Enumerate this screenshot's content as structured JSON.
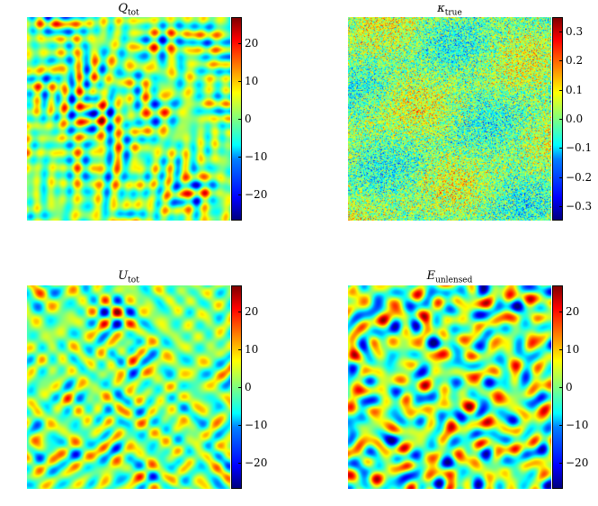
{
  "chart_data": [
    {
      "type": "heatmap",
      "title": "Q",
      "title_sub": "tot",
      "colormap": "jet",
      "clim": [
        -27,
        27
      ],
      "colorbar_ticks": [
        "20",
        "10",
        "0",
        "−10",
        "−20"
      ],
      "colorbar_tick_values": [
        20,
        10,
        0,
        -10,
        -20
      ],
      "texture": "grid-fine"
    },
    {
      "type": "heatmap",
      "title": "κ",
      "title_sub": "true",
      "colormap": "jet",
      "clim": [
        -0.35,
        0.35
      ],
      "colorbar_ticks": [
        "0.3",
        "0.2",
        "0.1",
        "0.0",
        "−0.1",
        "−0.2",
        "−0.3"
      ],
      "colorbar_tick_values": [
        0.3,
        0.2,
        0.1,
        0.0,
        -0.1,
        -0.2,
        -0.3
      ],
      "texture": "noise"
    },
    {
      "type": "heatmap",
      "title": "U",
      "title_sub": "tot",
      "colormap": "jet",
      "clim": [
        -27,
        27
      ],
      "colorbar_ticks": [
        "20",
        "10",
        "0",
        "−10",
        "−20"
      ],
      "colorbar_tick_values": [
        20,
        10,
        0,
        -10,
        -20
      ],
      "texture": "diagonal"
    },
    {
      "type": "heatmap",
      "title": "E",
      "title_sub": "unlensed",
      "colormap": "jet",
      "clim": [
        -27,
        27
      ],
      "colorbar_ticks": [
        "20",
        "10",
        "0",
        "−10",
        "−20"
      ],
      "colorbar_tick_values": [
        20,
        10,
        0,
        -10,
        -20
      ],
      "texture": "blobs"
    }
  ]
}
